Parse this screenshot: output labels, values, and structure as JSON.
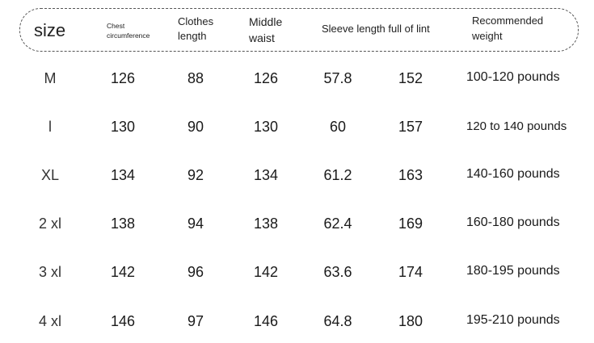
{
  "header": {
    "size": "size",
    "chest_line1": "Chest",
    "chest_line2": "circumference",
    "clothes_line1": "Clothes",
    "clothes_line2": "length",
    "middle_line1": "Middle",
    "middle_line2": "waist",
    "sleeve": "Sleeve length full of lint",
    "weight_line1": "Recommended",
    "weight_line2": "weight"
  },
  "rows": [
    {
      "size": "M",
      "chest": "126",
      "clothes": "88",
      "waist": "126",
      "sleeve": "57.8",
      "extra": "152",
      "weight": "100-120 pounds"
    },
    {
      "size": "l",
      "chest": "130",
      "clothes": "90",
      "waist": "130",
      "sleeve": "60",
      "extra": "157",
      "weight": "120 to 140 pounds"
    },
    {
      "size": "XL",
      "chest": "134",
      "clothes": "92",
      "waist": "134",
      "sleeve": "61.2",
      "extra": "163",
      "weight": "140-160 pounds"
    },
    {
      "size": "2 xl",
      "chest": "138",
      "clothes": "94",
      "waist": "138",
      "sleeve": "62.4",
      "extra": "169",
      "weight": "160-180 pounds"
    },
    {
      "size": "3 xl",
      "chest": "142",
      "clothes": "96",
      "waist": "142",
      "sleeve": "63.6",
      "extra": "174",
      "weight": "180-195 pounds"
    },
    {
      "size": "4 xl",
      "chest": "146",
      "clothes": "97",
      "waist": "146",
      "sleeve": "64.8",
      "extra": "180",
      "weight": "195-210 pounds"
    }
  ]
}
